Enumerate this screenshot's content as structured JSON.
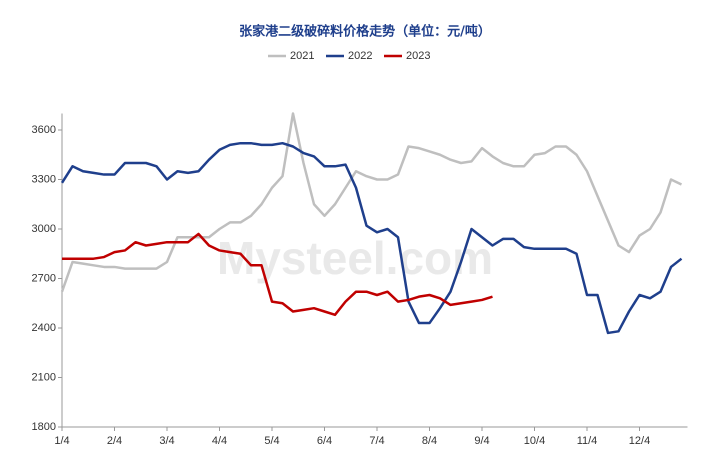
{
  "chart_data": {
    "type": "line",
    "title": "张家港二级破碎料价格走势（单位：元/吨）",
    "watermark": "Mysteel.com",
    "categories": [
      "1/4",
      null,
      null,
      null,
      null,
      "2/4",
      null,
      null,
      null,
      null,
      "3/4",
      null,
      null,
      null,
      null,
      "4/4",
      null,
      null,
      null,
      null,
      "5/4",
      null,
      null,
      null,
      null,
      "6/4",
      null,
      null,
      null,
      null,
      "7/4",
      null,
      null,
      null,
      null,
      "8/4",
      null,
      null,
      null,
      null,
      "9/4",
      null,
      null,
      null,
      null,
      "10/4",
      null,
      null,
      null,
      null,
      "11/4",
      null,
      null,
      null,
      null,
      "12/4",
      null,
      null,
      null,
      null
    ],
    "series": [
      {
        "name": "2021",
        "color": "#bfbfbf",
        "values": [
          2620,
          2800,
          2790,
          2780,
          2770,
          2770,
          2760,
          2760,
          2760,
          2760,
          2800,
          2950,
          2950,
          2950,
          2950,
          3000,
          3040,
          3040,
          3080,
          3150,
          3250,
          3320,
          3700,
          3400,
          3150,
          3080,
          3150,
          3250,
          3350,
          3320,
          3300,
          3300,
          3330,
          3500,
          3490,
          3470,
          3450,
          3420,
          3400,
          3410,
          3490,
          3440,
          3400,
          3380,
          3380,
          3450,
          3460,
          3500,
          3500,
          3450,
          3350,
          3200,
          3050,
          2900,
          2860,
          2960,
          3000,
          3100,
          3300,
          3270
        ]
      },
      {
        "name": "2022",
        "color": "#1f3f8c",
        "values": [
          3280,
          3380,
          3350,
          3340,
          3330,
          3330,
          3400,
          3400,
          3400,
          3380,
          3300,
          3350,
          3340,
          3350,
          3420,
          3480,
          3510,
          3520,
          3520,
          3510,
          3510,
          3520,
          3500,
          3460,
          3440,
          3380,
          3380,
          3390,
          3250,
          3020,
          2980,
          3000,
          2950,
          2560,
          2430,
          2430,
          2520,
          2620,
          2800,
          3000,
          2950,
          2900,
          2940,
          2940,
          2890,
          2880,
          2880,
          2880,
          2880,
          2850,
          2600,
          2600,
          2370,
          2380,
          2500,
          2600,
          2580,
          2620,
          2770,
          2820
        ]
      },
      {
        "name": "2023",
        "color": "#c00000",
        "values": [
          2820,
          2820,
          2820,
          2820,
          2830,
          2860,
          2870,
          2920,
          2900,
          2910,
          2920,
          2920,
          2920,
          2970,
          2900,
          2870,
          2860,
          2850,
          2780,
          2780,
          2560,
          2550,
          2500,
          2510,
          2520,
          2500,
          2480,
          2560,
          2620,
          2620,
          2600,
          2620,
          2560,
          2570,
          2590,
          2600,
          2580,
          2540,
          2550,
          2560,
          2570,
          2590,
          null,
          null,
          null,
          null,
          null,
          null,
          null,
          null,
          null,
          null,
          null,
          null,
          null,
          null,
          null,
          null,
          null,
          null
        ]
      }
    ],
    "ylim": [
      1800,
      3700
    ],
    "yticks": [
      1800,
      2100,
      2400,
      2700,
      3000,
      3300,
      3600
    ]
  }
}
